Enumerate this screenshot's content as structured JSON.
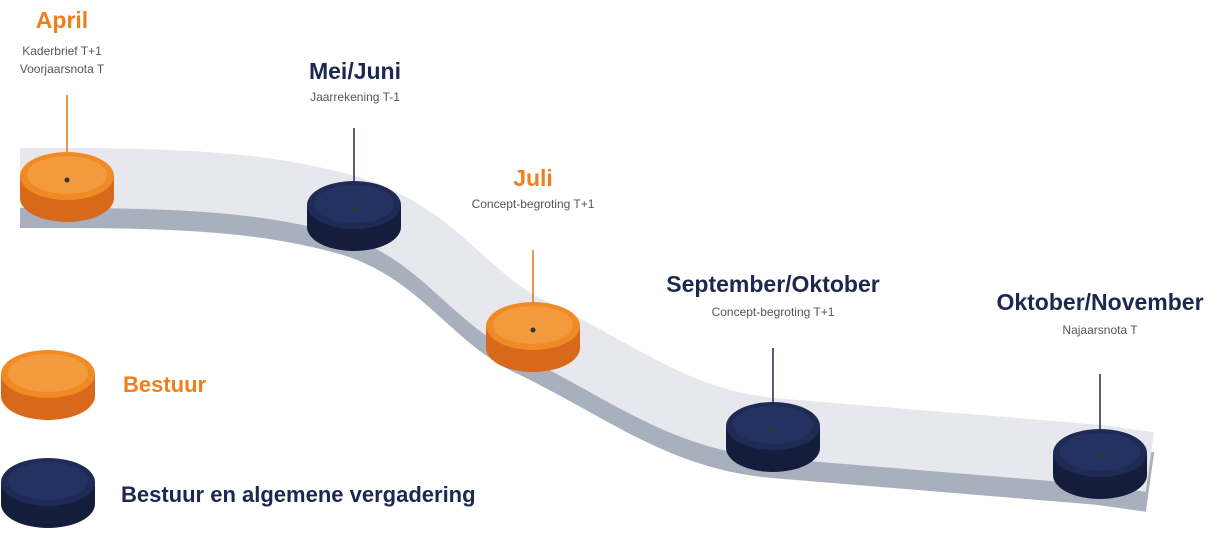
{
  "milestones": [
    {
      "title": "April",
      "details": [
        "Kaderbrief T+1",
        "Voorjaarsnota T"
      ]
    },
    {
      "title": "Mei/Juni",
      "details": [
        "Jaarrekening T-1"
      ]
    },
    {
      "title": "Juli",
      "details": [
        "Concept-begroting T+1"
      ]
    },
    {
      "title": "September/Oktober",
      "details": [
        "Concept-begroting T+1"
      ]
    },
    {
      "title": "Oktober/November",
      "details": [
        "Najaarsnota T"
      ]
    }
  ],
  "legend": [
    {
      "label": "Bestuur"
    },
    {
      "label": "Bestuur en algemene vergadering"
    }
  ]
}
